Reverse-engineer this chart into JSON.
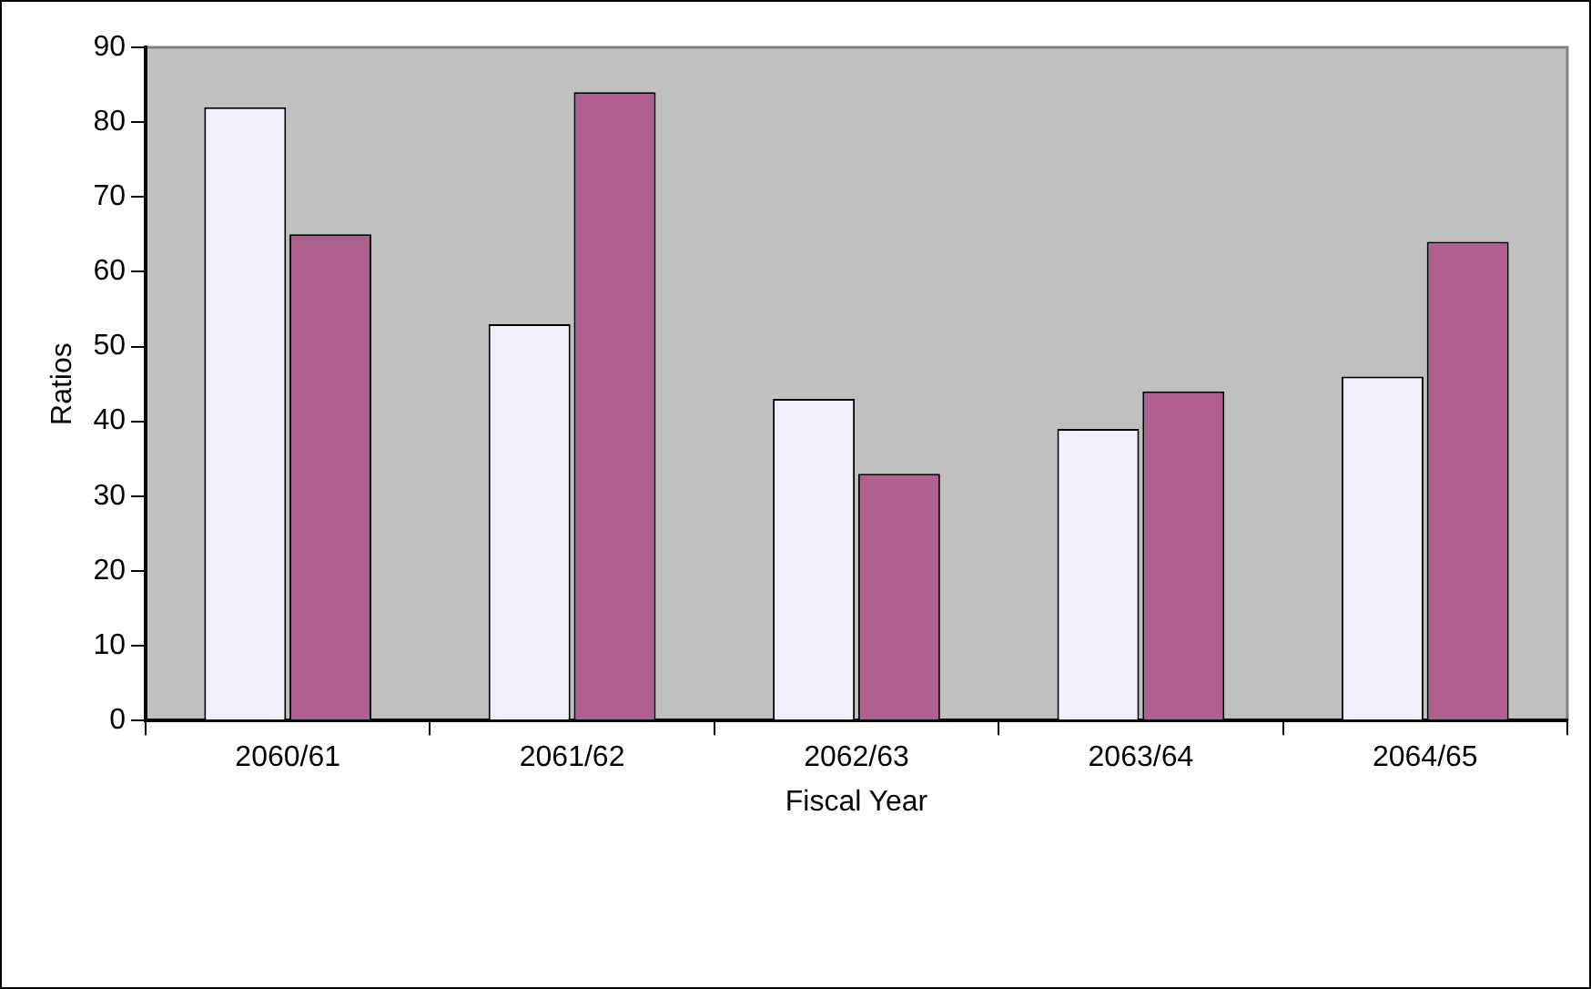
{
  "chart_data": {
    "type": "bar",
    "xlabel": "Fiscal Year",
    "ylabel": "Ratios",
    "categories": [
      "2060/61",
      "2061/62",
      "2062/63",
      "2063/64",
      "2064/65"
    ],
    "series": [
      {
        "color": "#f0f0fa",
        "values": [
          82,
          53,
          43,
          39,
          46
        ]
      },
      {
        "color": "#b0608e",
        "values": [
          65,
          84,
          33,
          44,
          64
        ]
      }
    ],
    "ylim": [
      0,
      90
    ],
    "yticks": [
      0,
      10,
      20,
      30,
      40,
      50,
      60,
      70,
      80,
      90
    ],
    "grid": false
  }
}
